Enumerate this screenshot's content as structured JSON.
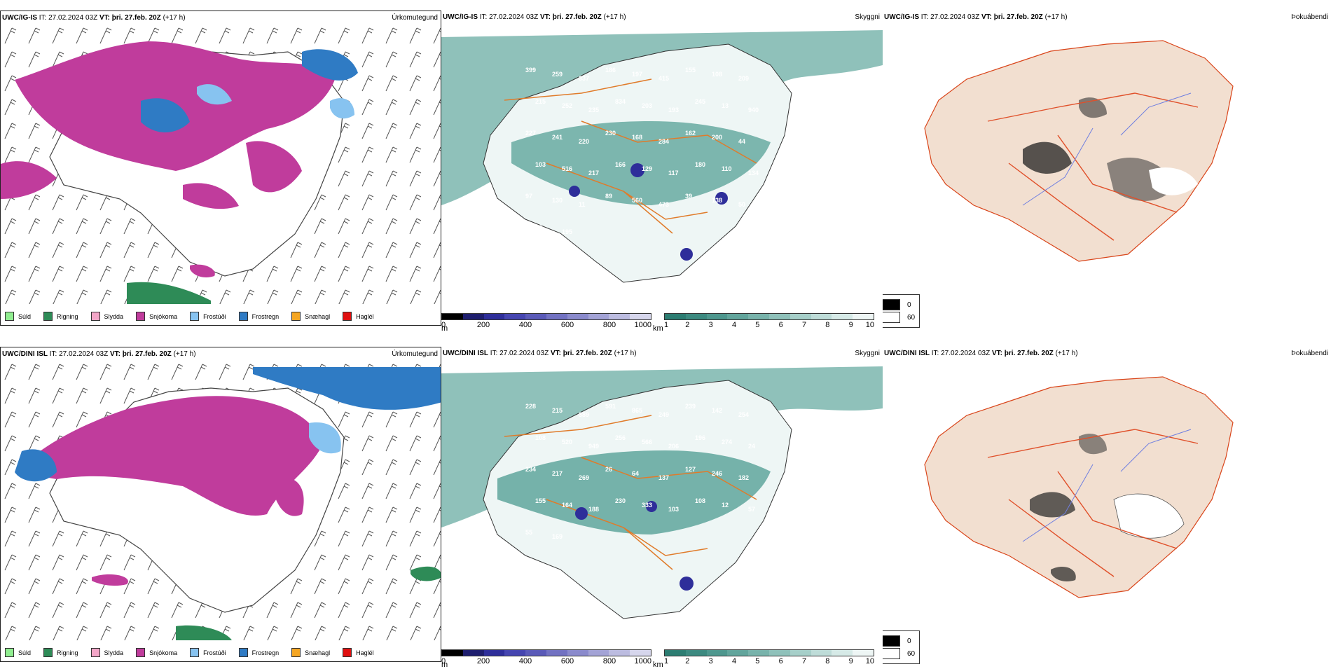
{
  "rows": [
    {
      "model": "UWC/IG-IS",
      "it_label": "IT:",
      "it_value": "27.02.2024 03Z",
      "vt_label": "VT:",
      "vt_value": "þri. 27.feb. 20Z",
      "lead": "(+17 h)",
      "labels_vis": [
        "399",
        "259",
        "337",
        "186",
        "197",
        "415",
        "155",
        "108",
        "209",
        "215",
        "252",
        "235",
        "834",
        "203",
        "193",
        "245",
        "13",
        "940",
        "227",
        "241",
        "220",
        "230",
        "168",
        "284",
        "162",
        "200",
        "44",
        "103",
        "516",
        "217",
        "166",
        "129",
        "117",
        "180",
        "110",
        "134",
        "97",
        "130",
        "11",
        "89",
        "560",
        "473",
        "39",
        "138",
        "50",
        "59",
        "195"
      ]
    },
    {
      "model": "UWC/DINI ISL",
      "it_label": "IT:",
      "it_value": "27.02.2024 03Z",
      "vt_label": "VT:",
      "vt_value": "þri. 27.feb. 20Z",
      "lead": "(+17 h)",
      "labels_vis": [
        "228",
        "215",
        "389",
        "591",
        "865",
        "249",
        "239",
        "142",
        "254",
        "108",
        "520",
        "949",
        "256",
        "566",
        "206",
        "196",
        "274",
        "24",
        "234",
        "217",
        "269",
        "26",
        "64",
        "137",
        "127",
        "246",
        "182",
        "155",
        "164",
        "188",
        "230",
        "333",
        "103",
        "108",
        "12",
        "57",
        "55",
        "169"
      ]
    }
  ],
  "titles": {
    "precip": "Úrkomutegund",
    "visibility": "Skyggni",
    "fog": "Þokuábendi"
  },
  "precip_legend": [
    {
      "label": "Súld",
      "color": "#90ee90"
    },
    {
      "label": "Rigning",
      "color": "#2e8b57"
    },
    {
      "label": "Slydda",
      "color": "#f4a6c8"
    },
    {
      "label": "Snjókoma",
      "color": "#c03c9c"
    },
    {
      "label": "Frostúði",
      "color": "#87c3f0"
    },
    {
      "label": "Frostregn",
      "color": "#2f7bc4"
    },
    {
      "label": "Snæhagl",
      "color": "#f5a623"
    },
    {
      "label": "Haglél",
      "color": "#e01010"
    }
  ],
  "ceiling_scale": {
    "unit": "m",
    "ticks": [
      "0",
      "200",
      "400",
      "600",
      "800",
      "1000"
    ],
    "colors": [
      "#000000",
      "#1e1e6e",
      "#2e2e9a",
      "#4545b0",
      "#5a5ab8",
      "#7272c2",
      "#8a8acc",
      "#a3a3d6",
      "#bcbce0",
      "#d6d6ec"
    ]
  },
  "vis_scale": {
    "unit": "km",
    "ticks": [
      "1",
      "2",
      "3",
      "4",
      "5",
      "6",
      "7",
      "8",
      "9",
      "10"
    ],
    "colors": [
      "#2c7d72",
      "#3c8a80",
      "#4e978e",
      "#62a59c",
      "#78b3ab",
      "#8fc1ba",
      "#a6cfc9",
      "#bedcd8",
      "#d6eae7",
      "#eef6f5"
    ]
  },
  "fog_legend": [
    {
      "label": "0",
      "color": "#000000"
    },
    {
      "label": "60",
      "color": "#ffffff"
    }
  ]
}
